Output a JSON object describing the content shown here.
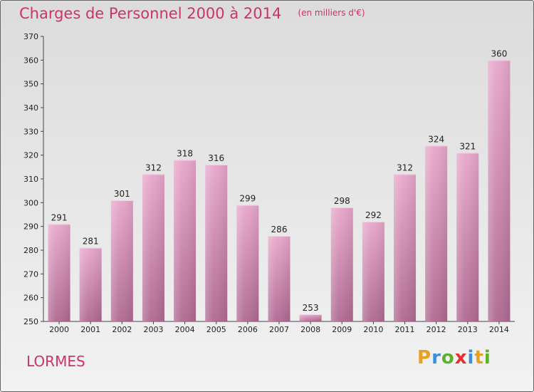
{
  "header": {
    "title": "Charges de Personnel 2000 à 2014",
    "subtitle": "(en milliers d'€)"
  },
  "footer": {
    "commune": "LORMES",
    "brand": [
      "P",
      "r",
      "o",
      "x",
      "i",
      "t",
      "i"
    ],
    "brand_colors": [
      "#e8a020",
      "#3a8fd8",
      "#5cb030",
      "#e8302a",
      "#3a8fd8",
      "#e8a020",
      "#5cb030"
    ]
  },
  "colors": {
    "bar_top": "#e8a8cc",
    "bar_bottom": "#b06a92",
    "accent": "#cc3366"
  },
  "chart_data": {
    "type": "bar",
    "title": "Charges de Personnel 2000 à 2014",
    "subtitle": "(en milliers d'€)",
    "categories": [
      "2000",
      "2001",
      "2002",
      "2003",
      "2004",
      "2005",
      "2006",
      "2007",
      "2008",
      "2009",
      "2010",
      "2011",
      "2012",
      "2013",
      "2014"
    ],
    "values": [
      291,
      281,
      301,
      312,
      318,
      316,
      299,
      286,
      253,
      298,
      292,
      312,
      324,
      321,
      360
    ],
    "ylim": [
      250,
      370
    ],
    "yticks": [
      250,
      260,
      270,
      280,
      290,
      300,
      310,
      320,
      330,
      340,
      350,
      360,
      370
    ],
    "grid": false,
    "legend": "none"
  }
}
